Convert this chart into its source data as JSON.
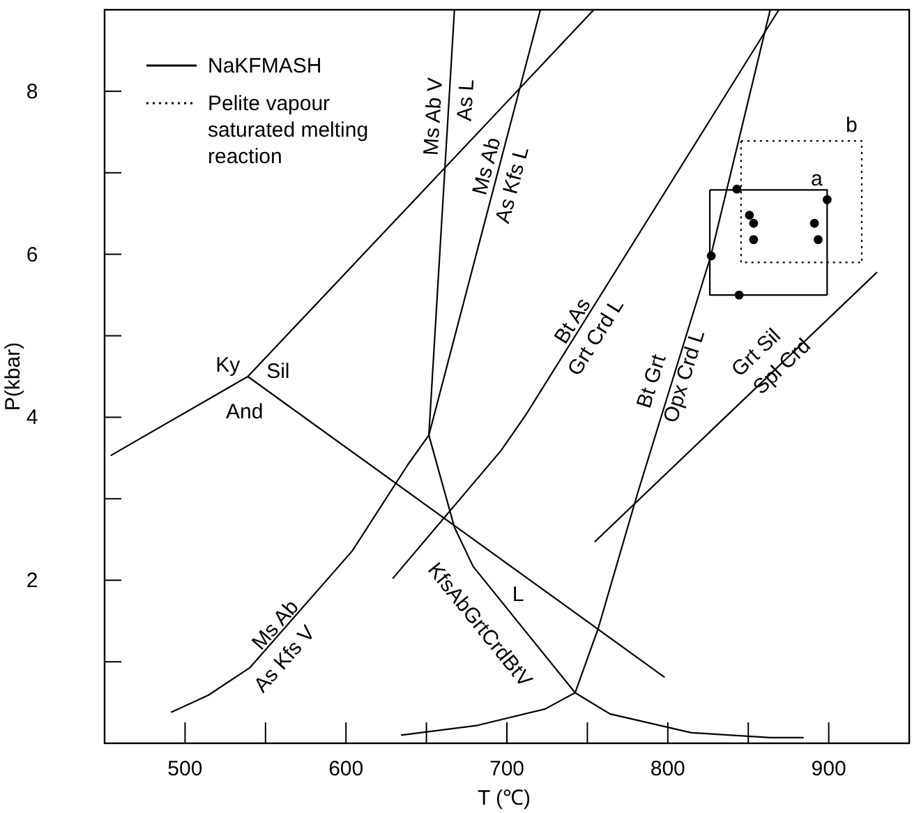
{
  "chart_data": {
    "type": "line",
    "xlabel": "T (℃)",
    "ylabel": "P(kbar)",
    "xlim": [
      450,
      950
    ],
    "ylim": [
      0,
      9
    ],
    "xticks": [
      500,
      {
        "value": 550,
        "label": null
      },
      600,
      {
        "value": 650,
        "label": null
      },
      700,
      {
        "value": 750,
        "label": null
      },
      800,
      {
        "value": 850,
        "label": null
      },
      900
    ],
    "yticks": [
      {
        "value": 1,
        "label": null
      },
      2,
      {
        "value": 3,
        "label": null
      },
      4,
      {
        "value": 5,
        "label": null
      },
      6,
      {
        "value": 7,
        "label": null
      },
      8
    ],
    "grid": false,
    "legend": "top left",
    "marker": "none",
    "line_style": "solid",
    "series": [
      {
        "name": "NaKFMASH",
        "color": "#000000",
        "x": [
          667.4,
          651.5,
          667.4,
          679,
          742.4
        ],
        "values": [
          9.0,
          3.78,
          2.65,
          2.17,
          0.62
        ]
      },
      {
        "color": "#000000",
        "x": [
          491.3,
          514.5,
          540.4,
          603.9,
          638.5,
          651.5,
          720.8
        ],
        "values": [
          0.38,
          0.59,
          0.93,
          2.36,
          3.42,
          3.78,
          9.0
        ]
      },
      {
        "color": "#000000",
        "x": [
          634.2,
          681.8,
          723.7,
          742.4,
          764,
          814.6,
          863.6,
          884.4
        ],
        "values": [
          0.1,
          0.22,
          0.42,
          0.62,
          0.36,
          0.13,
          0.07,
          0.07
        ]
      },
      {
        "color": "#000000",
        "x": [
          742.4,
          756.9,
          781.4,
          826.7,
          863.6
        ],
        "values": [
          0.62,
          1.42,
          3.08,
          5.98,
          9.0
        ]
      },
      {
        "color": "#000000",
        "x": [
          629,
          696.3,
          712.1,
          869
        ],
        "values": [
          2.02,
          3.59,
          4.04,
          9.0
        ]
      },
      {
        "color": "#000000",
        "x": [
          754.5,
          930
        ],
        "values": [
          2.47,
          5.78
        ]
      },
      {
        "color": "#000000",
        "x": [
          453.8,
          539,
          660,
          754
        ],
        "values": [
          3.53,
          4.5,
          7.03,
          9.0
        ]
      },
      {
        "color": "#000000",
        "x": [
          539,
          798
        ],
        "values": [
          4.5,
          0.81
        ]
      },
      {
        "color": "#000000",
        "x": [
          826.1,
          899,
          899
        ],
        "values": [
          6.79,
          6.79,
          5.5
        ]
      },
      {
        "color": "#000000",
        "x": [
          826.1,
          826.1,
          899
        ],
        "values": [
          6.79,
          5.5,
          5.5
        ]
      },
      {
        "name": "Pelite vapour saturated melting reaction",
        "color": "#000000",
        "line_style": "dotted",
        "x": [
          845.5,
          920.5,
          920.5
        ],
        "values": [
          7.39,
          7.39,
          5.9
        ]
      },
      {
        "color": "#000000",
        "line_style": "dotted",
        "x": [
          845.5,
          845.5,
          920.5
        ],
        "values": [
          7.39,
          5.9,
          5.9
        ]
      },
      {
        "type": "scatter",
        "marker": "circle",
        "color": "#000000",
        "x": [
          842.9,
          899,
          850.7,
          853.3,
          891.1,
          853.3,
          893.4,
          827,
          844.3
        ],
        "values": [
          6.8,
          6.67,
          6.48,
          6.38,
          6.38,
          6.18,
          6.18,
          5.98,
          5.5
        ]
      }
    ],
    "annotations": [
      "Ms Ab V",
      "As L",
      "Ms Ab",
      "As Kfs L",
      "Ky",
      "Sil",
      "And",
      "Bt As",
      "Grt Crd L",
      "Bt Grt",
      "Opx Crd L",
      "Grt Sil",
      "Spl Crd",
      "a",
      "b",
      "Ms Ab",
      "As Kfs V",
      "KfsAbGrtCrdBtV",
      "L"
    ]
  }
}
